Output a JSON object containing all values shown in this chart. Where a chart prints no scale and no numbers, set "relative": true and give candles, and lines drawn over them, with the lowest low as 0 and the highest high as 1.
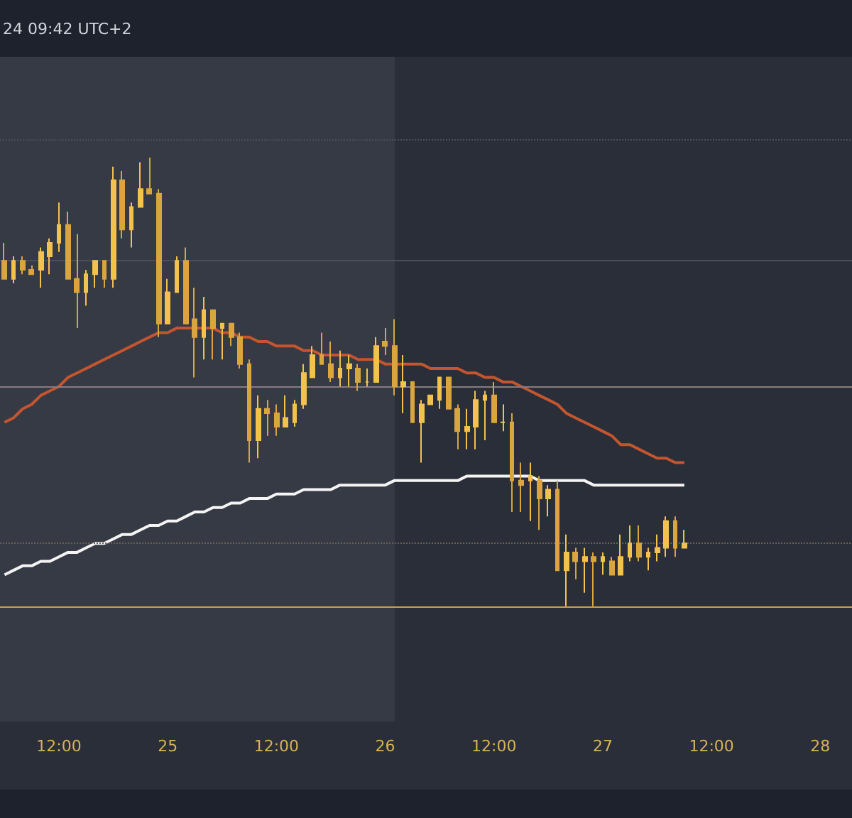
{
  "chart_data": {
    "type": "candlestick",
    "relative": true,
    "colors": [
      "#d9a53c",
      "#f2c14e",
      "#d9a53c",
      "#d9a53c",
      "#f2c14e",
      "#f2c14e",
      "#f2c14e",
      "#d9a53c",
      "#d9a53c",
      "#f2c14e",
      "#f2c14e",
      "#d9a53c",
      "#f2c14e",
      "#d9a53c",
      "#f2c14e",
      "#f2c14e",
      "#d9a53c",
      "#d9a53c",
      "#f2c14e",
      "#f2c14e",
      "#d9a53c",
      "#d9a53c",
      "#f2c14e",
      "#d9a53c",
      "#f2c14e",
      "#d9a53c",
      "#d9a53c",
      "#d9a53c",
      "#f2c14e",
      "#d9a53c",
      "#d9a53c",
      "#f2c14e",
      "#f2c14e",
      "#f2c14e",
      "#f2c14e",
      "#d9a53c",
      "#d9a53c",
      "#f2c14e",
      "#f2c14e",
      "#d9a53c",
      "#f2c14e",
      "#f2c14e",
      "#d9a53c",
      "#d9a53c",
      "#f2c14e",
      "#d9a53c",
      "#f2c14e",
      "#f2c14e",
      "#f2c14e",
      "#d9a53c",
      "#d9a53c",
      "#f2c14e",
      "#f2c14e",
      "#f2c14e",
      "#d9a53c",
      "#f2c14e",
      "#d9a53c",
      "#d9a53c",
      "#f2c14e",
      "#d9a53c",
      "#f2c14e",
      "#d9a53c",
      "#f2c14e",
      "#d9a53c",
      "#f2c14e",
      "#d9a53c",
      "#f2c14e",
      "#d9a53c",
      "#f2c14e",
      "#f2c14e",
      "#d9a53c",
      "#f2c14e",
      "#f2c14e",
      "#f2c14e",
      "#d9a53c",
      "#f2c14e",
      null,
      null,
      null,
      null,
      null,
      null,
      null,
      null,
      null,
      null,
      null,
      null,
      null,
      null,
      null,
      null,
      null,
      null
    ],
    "annotations": [
      "24 09:42 UTC+2"
    ],
    "categories": [
      null,
      null,
      null,
      null,
      null,
      null,
      "12:00",
      null,
      null,
      null,
      null,
      null,
      null,
      null,
      null,
      null,
      null,
      null,
      "25",
      null,
      null,
      null,
      null,
      null,
      null,
      null,
      null,
      null,
      null,
      null,
      "12:00",
      null,
      null,
      null,
      null,
      null,
      null,
      null,
      null,
      null,
      null,
      null,
      "26",
      null,
      null,
      null,
      null,
      null,
      null,
      null,
      null,
      null,
      null,
      null,
      "12:00",
      null,
      null,
      null,
      null,
      null,
      null,
      null,
      null,
      null,
      null,
      null,
      "27",
      null,
      null,
      null,
      null,
      null,
      null,
      null,
      null,
      null,
      null,
      null,
      "12:00",
      null,
      null,
      null,
      null,
      null,
      null,
      null,
      null,
      null,
      null,
      null,
      "28",
      null,
      null,
      null
    ],
    "ohlc": [
      [
        0.77,
        0.81,
        0.73,
        0.73
      ],
      [
        0.73,
        0.78,
        0.72,
        0.77
      ],
      [
        0.77,
        0.78,
        0.74,
        0.75
      ],
      [
        0.75,
        0.76,
        0.74,
        0.74
      ],
      [
        0.75,
        0.8,
        0.71,
        0.79
      ],
      [
        0.78,
        0.82,
        0.74,
        0.81
      ],
      [
        0.81,
        0.9,
        0.79,
        0.85
      ],
      [
        0.85,
        0.88,
        0.73,
        0.73
      ],
      [
        0.73,
        0.83,
        0.62,
        0.7
      ],
      [
        0.7,
        0.75,
        0.67,
        0.74
      ],
      [
        0.74,
        0.77,
        0.71,
        0.77
      ],
      [
        0.77,
        0.77,
        0.71,
        0.73
      ],
      [
        0.73,
        0.98,
        0.71,
        0.95
      ],
      [
        0.95,
        0.97,
        0.82,
        0.84
      ],
      [
        0.84,
        0.9,
        0.8,
        0.89
      ],
      [
        0.89,
        0.99,
        0.89,
        0.93
      ],
      [
        0.93,
        1,
        0.92,
        0.92
      ],
      [
        0.92,
        0.93,
        0.6,
        0.63
      ],
      [
        0.63,
        0.73,
        0.63,
        0.7
      ],
      [
        0.7,
        0.78,
        0.7,
        0.77
      ],
      [
        0.77,
        0.8,
        0.63,
        0.63
      ],
      [
        0.64,
        0.71,
        0.51,
        0.6
      ],
      [
        0.6,
        0.69,
        0.55,
        0.66
      ],
      [
        0.66,
        0.66,
        0.55,
        0.62
      ],
      [
        0.62,
        0.63,
        0.55,
        0.63
      ],
      [
        0.63,
        0.63,
        0.58,
        0.6
      ],
      [
        0.6,
        0.61,
        0.53,
        0.54
      ],
      [
        0.54,
        0.55,
        0.32,
        0.37
      ],
      [
        0.37,
        0.47,
        0.33,
        0.44
      ],
      [
        0.44,
        0.46,
        0.38,
        0.43
      ],
      [
        0.43,
        0.45,
        0.38,
        0.4
      ],
      [
        0.4,
        0.47,
        0.4,
        0.42
      ],
      [
        0.41,
        0.46,
        0.4,
        0.45
      ],
      [
        0.45,
        0.54,
        0.44,
        0.52
      ],
      [
        0.51,
        0.58,
        0.51,
        0.56
      ],
      [
        0.56,
        0.61,
        0.54,
        0.54
      ],
      [
        0.54,
        0.59,
        0.5,
        0.51
      ],
      [
        0.51,
        0.57,
        0.49,
        0.53
      ],
      [
        0.53,
        0.56,
        0.49,
        0.54
      ],
      [
        0.53,
        0.54,
        0.48,
        0.5
      ],
      [
        0.5,
        0.53,
        0.49,
        0.5
      ],
      [
        0.5,
        0.6,
        0.5,
        0.58
      ],
      [
        0.59,
        0.62,
        0.56,
        0.58
      ],
      [
        0.58,
        0.64,
        0.47,
        0.49
      ],
      [
        0.49,
        0.56,
        0.43,
        0.5
      ],
      [
        0.5,
        0.5,
        0.41,
        0.41
      ],
      [
        0.41,
        0.46,
        0.32,
        0.45
      ],
      [
        0.45,
        0.47,
        0.45,
        0.47
      ],
      [
        0.46,
        0.51,
        0.44,
        0.51
      ],
      [
        0.51,
        0.51,
        0.44,
        0.44
      ],
      [
        0.44,
        0.45,
        0.35,
        0.39
      ],
      [
        0.39,
        0.44,
        0.35,
        0.4
      ],
      [
        0.4,
        0.48,
        0.35,
        0.46
      ],
      [
        0.46,
        0.48,
        0.37,
        0.47
      ],
      [
        0.47,
        0.5,
        0.41,
        0.41
      ],
      [
        0.41,
        0.45,
        0.39,
        0.41
      ],
      [
        0.41,
        0.43,
        0.21,
        0.28
      ],
      [
        0.28,
        0.32,
        0.21,
        0.27
      ],
      [
        0.28,
        0.32,
        0.19,
        0.29
      ],
      [
        0.28,
        0.29,
        0.17,
        0.24
      ],
      [
        0.24,
        0.27,
        0.2,
        0.26
      ],
      [
        0.26,
        0.28,
        0.08,
        0.08
      ],
      [
        0.08,
        0.16,
        0,
        0.12
      ],
      [
        0.12,
        0.13,
        0.06,
        0.1
      ],
      [
        0.1,
        0.13,
        0.03,
        0.11
      ],
      [
        0.11,
        0.12,
        0,
        0.1
      ],
      [
        0.1,
        0.12,
        0.07,
        0.11
      ],
      [
        0.1,
        0.11,
        0.07,
        0.07
      ],
      [
        0.07,
        0.16,
        0.07,
        0.11
      ],
      [
        0.11,
        0.18,
        0.1,
        0.14
      ],
      [
        0.14,
        0.18,
        0.1,
        0.11
      ],
      [
        0.11,
        0.13,
        0.08,
        0.12
      ],
      [
        0.12,
        0.16,
        0.1,
        0.13
      ],
      [
        0.13,
        0.2,
        0.11,
        0.19
      ],
      [
        0.19,
        0.2,
        0.11,
        0.13
      ],
      [
        0.13,
        0.17,
        0.13,
        0.14
      ],
      null,
      null,
      null,
      null,
      null,
      null,
      null,
      null,
      null,
      null,
      null,
      null,
      null,
      null,
      null,
      null,
      null,
      null
    ],
    "series": [
      {
        "type": "line",
        "color": "#c4552f",
        "values": [
          0.41,
          0.42,
          0.44,
          0.45,
          0.47,
          0.48,
          0.49,
          0.51,
          0.52,
          0.53,
          0.54,
          0.55,
          0.56,
          0.57,
          0.58,
          0.59,
          0.6,
          0.61,
          0.61,
          0.62,
          0.62,
          0.62,
          0.62,
          0.62,
          0.61,
          0.61,
          0.6,
          0.6,
          0.59,
          0.59,
          0.58,
          0.58,
          0.58,
          0.57,
          0.57,
          0.56,
          0.56,
          0.56,
          0.56,
          0.55,
          0.55,
          0.55,
          0.54,
          0.54,
          0.54,
          0.54,
          0.54,
          0.53,
          0.53,
          0.53,
          0.53,
          0.52,
          0.52,
          0.51,
          0.51,
          0.5,
          0.5,
          0.49,
          0.48,
          0.47,
          0.46,
          0.45,
          0.43,
          0.42,
          0.41,
          0.4,
          0.39,
          0.38,
          0.36,
          0.36,
          0.35,
          0.34,
          0.33,
          0.33,
          0.32,
          0.32,
          null,
          null,
          null,
          null,
          null,
          null,
          null,
          null,
          null,
          null,
          null,
          null,
          null,
          null,
          null,
          null,
          null,
          null
        ]
      },
      {
        "type": "line",
        "color": "#f4f4f4",
        "values": [
          0.07,
          0.08,
          0.09,
          0.09,
          0.1,
          0.1,
          0.11,
          0.12,
          0.12,
          0.13,
          0.14,
          0.14,
          0.15,
          0.16,
          0.16,
          0.17,
          0.18,
          0.18,
          0.19,
          0.19,
          0.2,
          0.21,
          0.21,
          0.22,
          0.22,
          0.23,
          0.23,
          0.24,
          0.24,
          0.24,
          0.25,
          0.25,
          0.25,
          0.26,
          0.26,
          0.26,
          0.26,
          0.27,
          0.27,
          0.27,
          0.27,
          0.27,
          0.27,
          0.28,
          0.28,
          0.28,
          0.28,
          0.28,
          0.28,
          0.28,
          0.28,
          0.29,
          0.29,
          0.29,
          0.29,
          0.29,
          0.29,
          0.29,
          0.29,
          0.28,
          0.28,
          0.28,
          0.28,
          0.28,
          0.28,
          0.27,
          0.27,
          0.27,
          0.27,
          0.27,
          0.27,
          0.27,
          0.27,
          0.27,
          0.27,
          0.27,
          null,
          null,
          null,
          null,
          null,
          null,
          null,
          null,
          null,
          null,
          null,
          null,
          null,
          null,
          null,
          null,
          null,
          null
        ]
      }
    ],
    "ref_lines": [
      {
        "axis": "y",
        "value": 1.04,
        "color": "#4a4e59",
        "line_style": "dotted"
      },
      {
        "axis": "y",
        "value": 0.77,
        "color": "#4a4e59",
        "line_style": "solid"
      },
      {
        "axis": "y",
        "value": 0.49,
        "color": "#8a7a80",
        "line_style": "solid"
      },
      {
        "axis": "y",
        "value": 0.14,
        "color": "#6b5f55",
        "line_style": "dotted"
      }
    ]
  }
}
